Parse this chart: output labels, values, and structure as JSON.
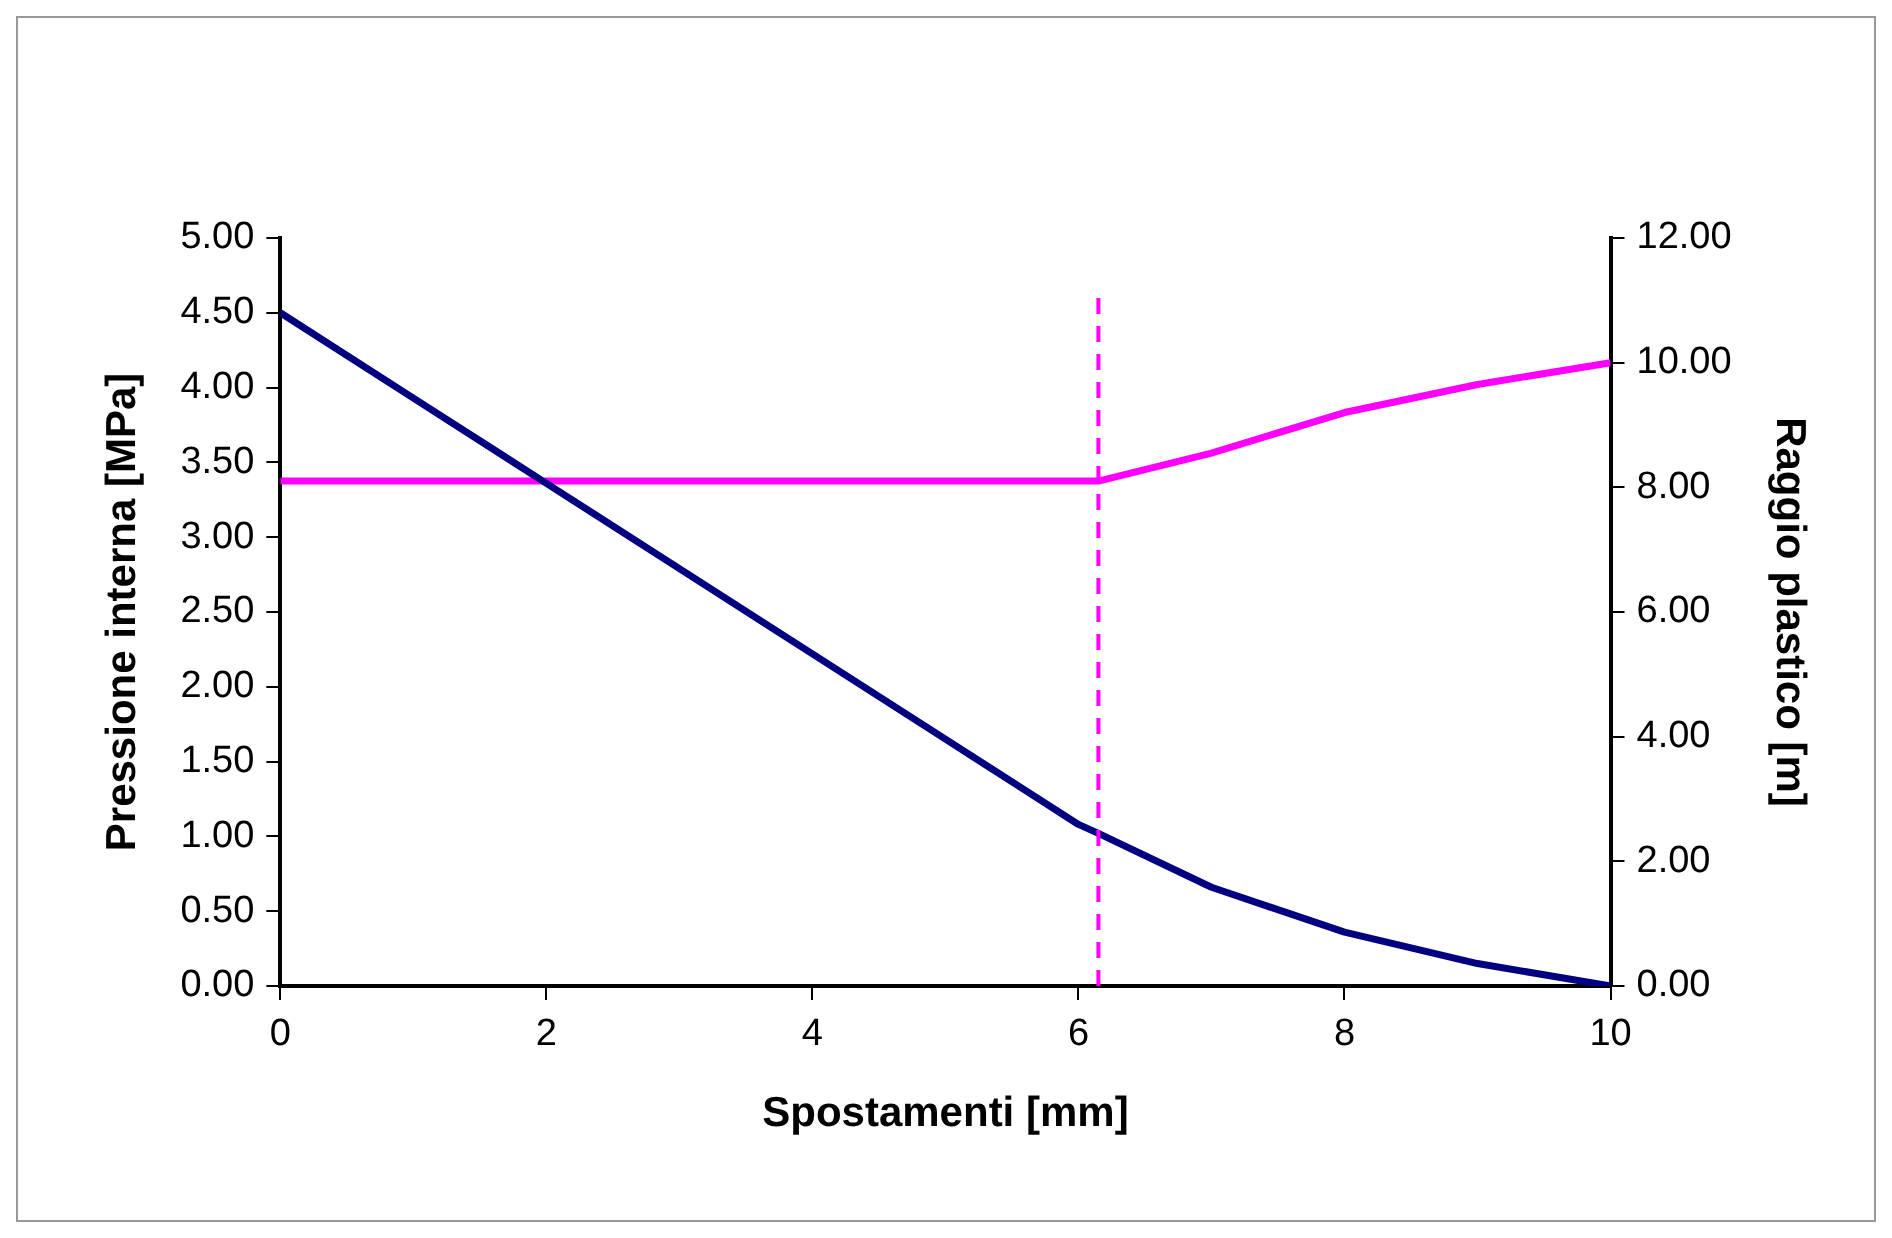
{
  "chart_data": {
    "type": "line",
    "xlabel": "Spostamenti [mm]",
    "ylabel": "Pressione interna [MPa]",
    "y2label": "Raggio plastico [m]",
    "xlim": [
      0,
      10
    ],
    "xticks": [
      0,
      2,
      4,
      6,
      8,
      10
    ],
    "ylim": [
      0,
      5
    ],
    "yticks": [
      {
        "value": 0,
        "label": "0.00"
      },
      {
        "value": 0.5,
        "label": "0.50"
      },
      {
        "value": 1,
        "label": "1.00"
      },
      {
        "value": 1.5,
        "label": "1.50"
      },
      {
        "value": 2,
        "label": "2.00"
      },
      {
        "value": 2.5,
        "label": "2.50"
      },
      {
        "value": 3,
        "label": "3.00"
      },
      {
        "value": 3.5,
        "label": "3.50"
      },
      {
        "value": 4,
        "label": "4.00"
      },
      {
        "value": 4.5,
        "label": "4.50"
      },
      {
        "value": 5,
        "label": "5.00"
      }
    ],
    "y2lim": [
      0,
      12
    ],
    "y2ticks": [
      {
        "value": 0,
        "label": "0.00"
      },
      {
        "value": 2,
        "label": "2.00"
      },
      {
        "value": 4,
        "label": "4.00"
      },
      {
        "value": 6,
        "label": "6.00"
      },
      {
        "value": 8,
        "label": "8.00"
      },
      {
        "value": 10,
        "label": "10.00"
      },
      {
        "value": 12,
        "label": "12.00"
      }
    ],
    "grid": false,
    "legend": false,
    "marker": "none",
    "line_style": "solid",
    "series": [
      {
        "color": "#000080",
        "x": [
          0,
          1,
          2,
          3,
          4,
          5,
          6,
          6.15,
          7,
          8,
          9,
          10
        ],
        "values": [
          4.5,
          3.93,
          3.36,
          2.79,
          2.22,
          1.65,
          1.08,
          1.02,
          0.66,
          0.36,
          0.15,
          0
        ]
      },
      {
        "color": "#ff00ff",
        "axis": "y2",
        "x": [
          0,
          6.15,
          7,
          8,
          9,
          10
        ],
        "values": [
          8.1,
          8.1,
          8.55,
          9.2,
          9.65,
          10
        ]
      }
    ],
    "ref_lines": [
      {
        "axis": "x",
        "value": 6.15,
        "color": "#ff00ff",
        "line_style": "dashed"
      }
    ]
  }
}
